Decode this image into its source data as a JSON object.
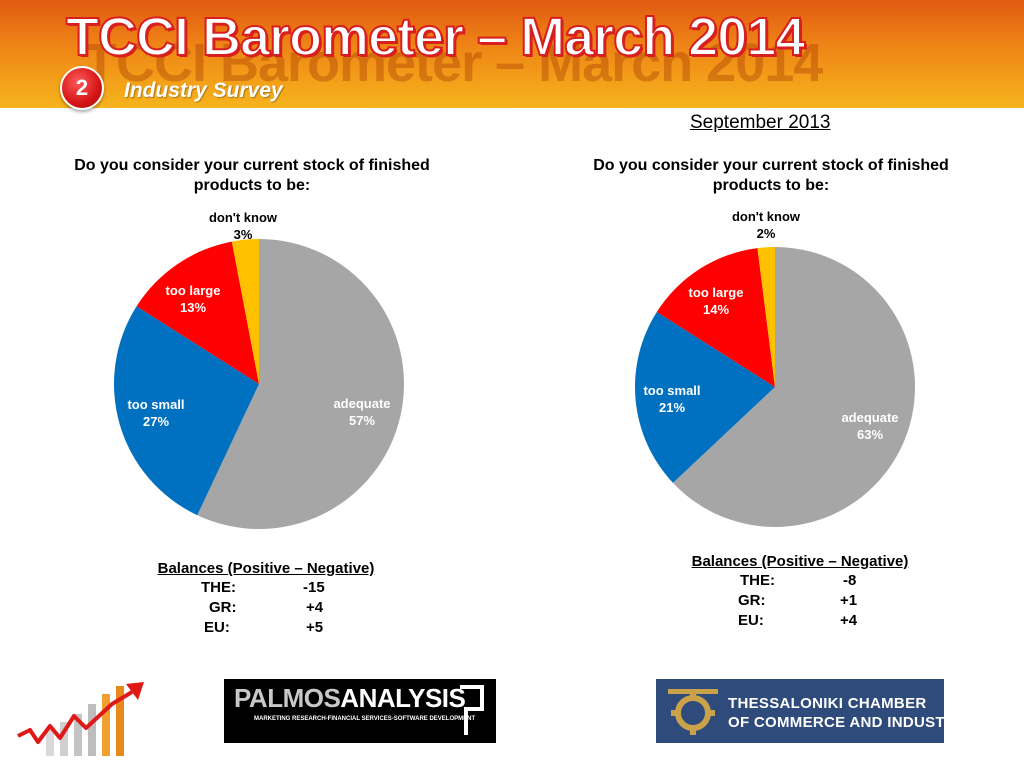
{
  "header": {
    "title": "TCCI Barometer – March 2014",
    "section_number": "2",
    "section_label": "Industry Survey",
    "title_color": "#ffffff",
    "title_outline_color": "#d81e1e"
  },
  "period_label": "September 2013",
  "colors": {
    "adequate": "#a6a6a6",
    "too small": "#0070c0",
    "too large": "#ff0000",
    "don't know": "#ffc000"
  },
  "left_panel": {
    "question": "Do you consider your current stock of finished products to be:",
    "balances": {
      "title": "Balances (Positive – Negative)",
      "rows": [
        {
          "label": "THE:",
          "value": "-15"
        },
        {
          "label": "GR:",
          "value": "+4"
        },
        {
          "label": "EU:",
          "value": "+5"
        }
      ]
    }
  },
  "right_panel": {
    "question": "Do you consider your current stock of finished products to be:",
    "balances": {
      "title": "Balances (Positive – Negative)",
      "rows": [
        {
          "label": "THE:",
          "value": "-8"
        },
        {
          "label": "GR:",
          "value": "+1"
        },
        {
          "label": "EU:",
          "value": "+4"
        }
      ]
    }
  },
  "chart_data": [
    {
      "type": "pie",
      "title": "Do you consider your current stock of finished products to be:",
      "categories": [
        "adequate",
        "too small",
        "too large",
        "don't know"
      ],
      "values": [
        57,
        27,
        13,
        3
      ],
      "labels": [
        "57%",
        "27%",
        "13%",
        "3%"
      ],
      "unit": "%"
    },
    {
      "type": "pie",
      "title": "Do you consider your current stock of finished products to be:",
      "categories": [
        "adequate",
        "too small",
        "too large",
        "don't know"
      ],
      "values": [
        63,
        21,
        14,
        2
      ],
      "labels": [
        "63%",
        "21%",
        "14%",
        "2%"
      ],
      "unit": "%"
    }
  ],
  "logos": {
    "palmos_part1": "PALMOS",
    "palmos_part2": "ANALYSIS",
    "palmos_tagline": "MARKETING RESEARCH-FINANCIAL SERVICES-SOFTWARE DEVELOPMENT",
    "tcci_line1": "THESSALONIKI CHAMBER",
    "tcci_line2": "OF COMMERCE AND INDUSTRY"
  }
}
